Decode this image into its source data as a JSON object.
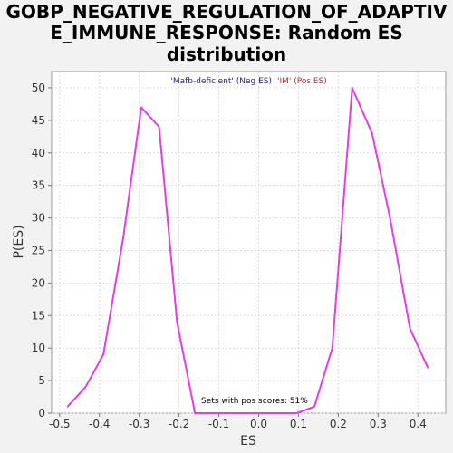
{
  "chart_data": {
    "type": "line",
    "title_lines": [
      "GOBP_NEGATIVE_REGULATION_OF_ADAPTIV",
      "E_IMMUNE_RESPONSE: Random ES",
      "distribution"
    ],
    "xlabel": "ES",
    "ylabel": "P(ES)",
    "xlim": [
      -0.52,
      0.47
    ],
    "ylim": [
      0,
      52.5
    ],
    "xticks": [
      -0.5,
      -0.4,
      -0.3,
      -0.2,
      -0.1,
      0.0,
      0.1,
      0.2,
      0.3,
      0.4
    ],
    "xtick_labels": [
      "-0.5",
      "-0.4",
      "-0.3",
      "-0.2",
      "-0.1",
      "0.0",
      "0.1",
      "0.2",
      "0.3",
      "0.4"
    ],
    "yticks": [
      0,
      5,
      10,
      15,
      20,
      25,
      30,
      35,
      40,
      45,
      50
    ],
    "ytick_labels": [
      "0",
      "5",
      "10",
      "15",
      "20",
      "25",
      "30",
      "35",
      "40",
      "45",
      "50"
    ],
    "grid": true,
    "series": [
      {
        "color": "#e43de4",
        "x": [
          -0.48,
          -0.435,
          -0.39,
          -0.34,
          -0.295,
          -0.25,
          -0.205,
          -0.16,
          -0.11,
          -0.065,
          -0.02,
          0.03,
          0.095,
          0.14,
          0.185,
          0.235,
          0.285,
          0.33,
          0.38,
          0.425
        ],
        "y": [
          1,
          4,
          9,
          27,
          47,
          44,
          14,
          0,
          0,
          0,
          0,
          0,
          0,
          1,
          10,
          50,
          43,
          30,
          13,
          7
        ]
      }
    ],
    "legend": [
      {
        "label": "'Mafb-deficient' (Neg ES)",
        "color": "#1a1aa8"
      },
      {
        "label": "'IM' (Pos ES)",
        "color": "#d42020"
      }
    ],
    "annotation": "Sets with pos scores: 51%"
  }
}
